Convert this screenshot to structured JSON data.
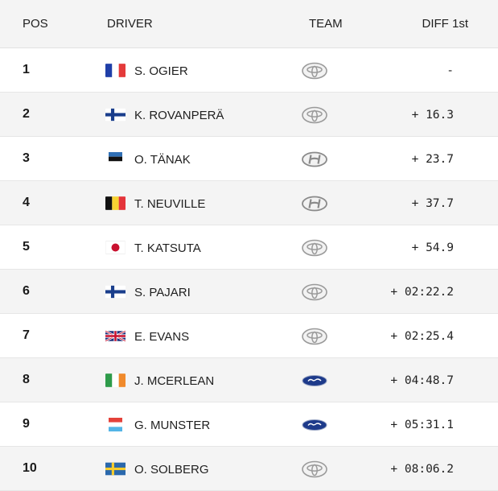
{
  "header": {
    "pos": "POS",
    "driver": "DRIVER",
    "team": "TEAM",
    "diff": "DIFF 1st"
  },
  "rows": [
    {
      "pos": "1",
      "name": "S. OGIER",
      "flag": "france-flag-icon",
      "team": "toyota-logo-icon",
      "diff": "-"
    },
    {
      "pos": "2",
      "name": "K. ROVANPERÄ",
      "flag": "finland-flag-icon",
      "team": "toyota-logo-icon",
      "diff": "+ 16.3"
    },
    {
      "pos": "3",
      "name": "O. TÄNAK",
      "flag": "estonia-flag-icon",
      "team": "hyundai-logo-icon",
      "diff": "+ 23.7"
    },
    {
      "pos": "4",
      "name": "T. NEUVILLE",
      "flag": "belgium-flag-icon",
      "team": "hyundai-logo-icon",
      "diff": "+ 37.7"
    },
    {
      "pos": "5",
      "name": "T. KATSUTA",
      "flag": "japan-flag-icon",
      "team": "toyota-logo-icon",
      "diff": "+ 54.9"
    },
    {
      "pos": "6",
      "name": "S. PAJARI",
      "flag": "finland-flag-icon",
      "team": "toyota-logo-icon",
      "diff": "+ 02:22.2"
    },
    {
      "pos": "7",
      "name": "E. EVANS",
      "flag": "uk-flag-icon",
      "team": "toyota-logo-icon",
      "diff": "+ 02:25.4"
    },
    {
      "pos": "8",
      "name": "J. MCERLEAN",
      "flag": "ireland-flag-icon",
      "team": "ford-logo-icon",
      "diff": "+ 04:48.7"
    },
    {
      "pos": "9",
      "name": "G. MUNSTER",
      "flag": "luxembourg-flag-icon",
      "team": "ford-logo-icon",
      "diff": "+ 05:31.1"
    },
    {
      "pos": "10",
      "name": "O. SOLBERG",
      "flag": "sweden-flag-icon",
      "team": "toyota-logo-icon",
      "diff": "+ 08:06.2"
    }
  ],
  "colors": {
    "header_bg": "#f4f4f4",
    "alt_row_bg": "#f4f4f4",
    "ford_blue": "#1d3a8a"
  }
}
